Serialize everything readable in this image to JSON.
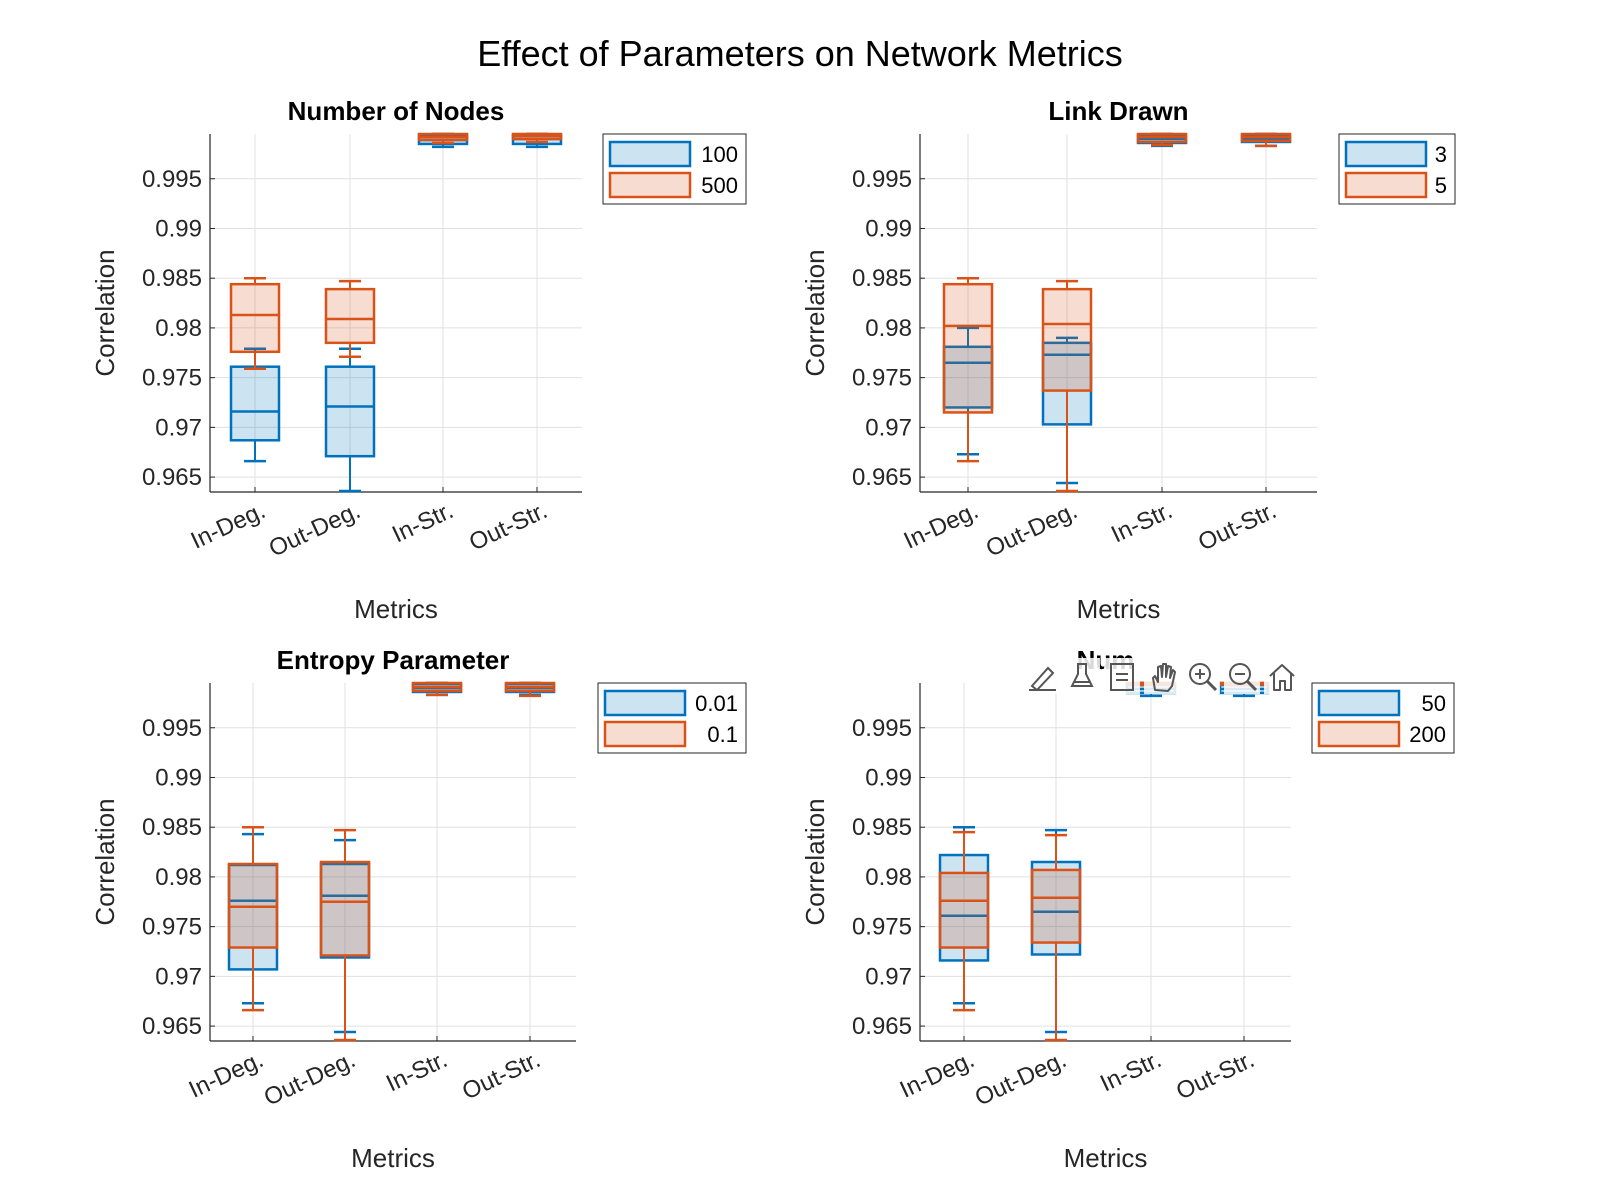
{
  "figure": {
    "title": "Effect of Parameters on Network Metrics"
  },
  "colors": {
    "series1": "#0072BD",
    "series2": "#D95319",
    "grid": "#e0e0e0",
    "axis": "#262626"
  },
  "axes_toolbar": [
    "brush-edit-icon",
    "data-brush-icon",
    "legend-toggle-icon",
    "pan-hand-icon",
    "zoom-in-icon",
    "zoom-out-icon",
    "restore-view-home-icon"
  ],
  "chart_data": [
    {
      "type": "box",
      "title": "Number of Nodes",
      "xlabel": "Metrics",
      "ylabel": "Correlation",
      "categories": [
        "In-Deg.",
        "Out-Deg.",
        "In-Str.",
        "Out-Str."
      ],
      "ylim": [
        0.9635,
        0.9995
      ],
      "yticks": [
        0.965,
        0.97,
        0.975,
        0.98,
        0.985,
        0.99,
        0.995
      ],
      "ytick_labels": [
        "0.965",
        "0.97",
        "0.975",
        "0.98",
        "0.985",
        "0.99",
        "0.995"
      ],
      "grid": true,
      "legend_position": "top-right-outside",
      "series": [
        {
          "name": "100",
          "boxes": [
            {
              "wlo": 0.9666,
              "q1": 0.9687,
              "med": 0.9716,
              "q3": 0.9761,
              "whi": 0.9779
            },
            {
              "wlo": 0.9636,
              "q1": 0.9671,
              "med": 0.9721,
              "q3": 0.9761,
              "whi": 0.9779
            },
            {
              "wlo": 0.9982,
              "q1": 0.9985,
              "med": 0.9989,
              "q3": 0.9994,
              "whi": 0.9995
            },
            {
              "wlo": 0.9982,
              "q1": 0.9985,
              "med": 0.999,
              "q3": 0.9994,
              "whi": 0.9995
            }
          ]
        },
        {
          "name": "500",
          "boxes": [
            {
              "wlo": 0.9759,
              "q1": 0.9776,
              "med": 0.9813,
              "q3": 0.9844,
              "whi": 0.985
            },
            {
              "wlo": 0.9771,
              "q1": 0.9785,
              "med": 0.9809,
              "q3": 0.9839,
              "whi": 0.9847
            },
            {
              "wlo": 0.9986,
              "q1": 0.9989,
              "med": 0.9992,
              "q3": 0.9995,
              "whi": 0.9995
            },
            {
              "wlo": 0.9987,
              "q1": 0.999,
              "med": 0.9993,
              "q3": 0.9995,
              "whi": 0.9995
            }
          ]
        }
      ]
    },
    {
      "type": "box",
      "title": "Link Drawn",
      "xlabel": "Metrics",
      "ylabel": "Correlation",
      "categories": [
        "In-Deg.",
        "Out-Deg.",
        "In-Str.",
        "Out-Str."
      ],
      "ylim": [
        0.9635,
        0.9995
      ],
      "yticks": [
        0.965,
        0.97,
        0.975,
        0.98,
        0.985,
        0.99,
        0.995
      ],
      "ytick_labels": [
        "0.965",
        "0.97",
        "0.975",
        "0.98",
        "0.985",
        "0.99",
        "0.995"
      ],
      "grid": true,
      "legend_position": "top-right-outside",
      "series": [
        {
          "name": "3",
          "boxes": [
            {
              "wlo": 0.9673,
              "q1": 0.972,
              "med": 0.9765,
              "q3": 0.9781,
              "whi": 0.98
            },
            {
              "wlo": 0.9644,
              "q1": 0.9703,
              "med": 0.9773,
              "q3": 0.9785,
              "whi": 0.979
            },
            {
              "wlo": 0.9983,
              "q1": 0.9986,
              "med": 0.999,
              "q3": 0.9994,
              "whi": 0.9995
            },
            {
              "wlo": 0.9983,
              "q1": 0.9987,
              "med": 0.999,
              "q3": 0.9994,
              "whi": 0.9995
            }
          ]
        },
        {
          "name": "5",
          "boxes": [
            {
              "wlo": 0.9666,
              "q1": 0.9715,
              "med": 0.9802,
              "q3": 0.9844,
              "whi": 0.985
            },
            {
              "wlo": 0.9636,
              "q1": 0.9737,
              "med": 0.9804,
              "q3": 0.9839,
              "whi": 0.9847
            },
            {
              "wlo": 0.9984,
              "q1": 0.9987,
              "med": 0.9992,
              "q3": 0.9995,
              "whi": 0.9995
            },
            {
              "wlo": 0.9983,
              "q1": 0.9988,
              "med": 0.9992,
              "q3": 0.9995,
              "whi": 0.9995
            }
          ]
        }
      ]
    },
    {
      "type": "box",
      "title": "Entropy Parameter",
      "xlabel": "Metrics",
      "ylabel": "Correlation",
      "categories": [
        "In-Deg.",
        "Out-Deg.",
        "In-Str.",
        "Out-Str."
      ],
      "ylim": [
        0.9635,
        0.9995
      ],
      "yticks": [
        0.965,
        0.97,
        0.975,
        0.98,
        0.985,
        0.99,
        0.995
      ],
      "ytick_labels": [
        "0.965",
        "0.97",
        "0.975",
        "0.98",
        "0.985",
        "0.99",
        "0.995"
      ],
      "grid": true,
      "legend_position": "top-right-outside",
      "series": [
        {
          "name": "0.01",
          "boxes": [
            {
              "wlo": 0.9673,
              "q1": 0.9707,
              "med": 0.9776,
              "q3": 0.9812,
              "whi": 0.9843
            },
            {
              "wlo": 0.9644,
              "q1": 0.9719,
              "med": 0.9781,
              "q3": 0.9813,
              "whi": 0.9837
            },
            {
              "wlo": 0.9983,
              "q1": 0.9986,
              "med": 0.999,
              "q3": 0.9994,
              "whi": 0.9995
            },
            {
              "wlo": 0.9983,
              "q1": 0.9986,
              "med": 0.999,
              "q3": 0.9994,
              "whi": 0.9995
            }
          ]
        },
        {
          "name": "0.1",
          "boxes": [
            {
              "wlo": 0.9666,
              "q1": 0.9729,
              "med": 0.977,
              "q3": 0.9813,
              "whi": 0.985
            },
            {
              "wlo": 0.9636,
              "q1": 0.9721,
              "med": 0.9775,
              "q3": 0.9815,
              "whi": 0.9847
            },
            {
              "wlo": 0.9983,
              "q1": 0.9987,
              "med": 0.9991,
              "q3": 0.9995,
              "whi": 0.9995
            },
            {
              "wlo": 0.9982,
              "q1": 0.9987,
              "med": 0.9991,
              "q3": 0.9995,
              "whi": 0.9995
            }
          ]
        }
      ]
    },
    {
      "type": "box",
      "title": "Num",
      "xlabel": "Metrics",
      "ylabel": "Correlation",
      "categories": [
        "In-Deg.",
        "Out-Deg.",
        "In-Str.",
        "Out-Str."
      ],
      "ylim": [
        0.9635,
        0.9995
      ],
      "yticks": [
        0.965,
        0.97,
        0.975,
        0.98,
        0.985,
        0.99,
        0.995
      ],
      "ytick_labels": [
        "0.965",
        "0.97",
        "0.975",
        "0.98",
        "0.985",
        "0.99",
        "0.995"
      ],
      "grid": true,
      "legend_position": "top-right-outside",
      "series": [
        {
          "name": "50",
          "boxes": [
            {
              "wlo": 0.9673,
              "q1": 0.9716,
              "med": 0.9761,
              "q3": 0.9822,
              "whi": 0.985
            },
            {
              "wlo": 0.9644,
              "q1": 0.9722,
              "med": 0.9765,
              "q3": 0.9815,
              "whi": 0.9847
            },
            {
              "wlo": 0.9982,
              "q1": 0.9985,
              "med": 0.9989,
              "q3": 0.9993,
              "whi": 0.9995
            },
            {
              "wlo": 0.9982,
              "q1": 0.9985,
              "med": 0.9989,
              "q3": 0.9993,
              "whi": 0.9995
            }
          ]
        },
        {
          "name": "200",
          "boxes": [
            {
              "wlo": 0.9666,
              "q1": 0.9729,
              "med": 0.9776,
              "q3": 0.9804,
              "whi": 0.9845
            },
            {
              "wlo": 0.9636,
              "q1": 0.9734,
              "med": 0.9779,
              "q3": 0.9807,
              "whi": 0.9842
            },
            {
              "wlo": 0.9993,
              "q1": 0.9994,
              "med": 0.9995,
              "q3": 0.9995,
              "whi": 0.9995
            },
            {
              "wlo": 0.9993,
              "q1": 0.9994,
              "med": 0.9995,
              "q3": 0.9995,
              "whi": 0.9995
            }
          ]
        }
      ]
    }
  ]
}
